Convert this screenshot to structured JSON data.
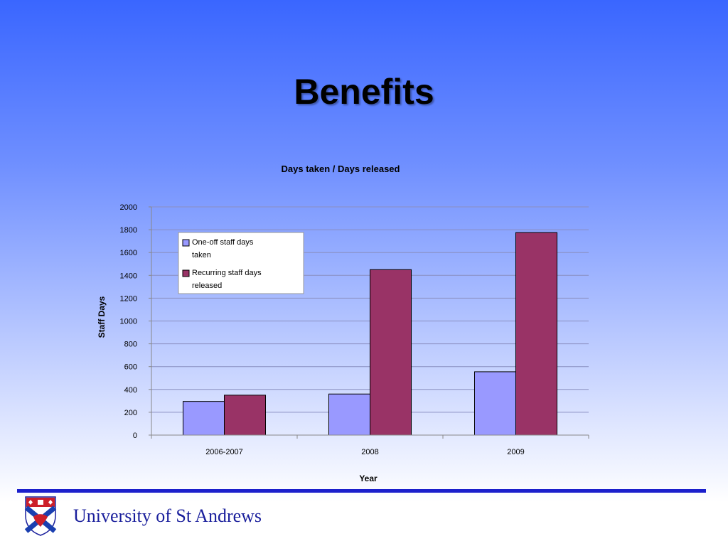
{
  "slide": {
    "title": "Benefits"
  },
  "footer": {
    "university_name": "University of St Andrews"
  },
  "colors": {
    "series1": "#9999ff",
    "series2": "#993366",
    "footer_line": "#1b1fcc",
    "title_text": "#000000"
  },
  "chart_data": {
    "type": "bar",
    "title": "Days taken / Days released",
    "xlabel": "Year",
    "ylabel": "Staff Days",
    "categories": [
      "2006-2007",
      "2008",
      "2009"
    ],
    "series": [
      {
        "name": "One-off staff days taken",
        "values": [
          295,
          360,
          555
        ]
      },
      {
        "name": "Recurring staff days released",
        "values": [
          350,
          1450,
          1775
        ]
      }
    ],
    "ylim": [
      0,
      2000
    ],
    "yticks": [
      0,
      200,
      400,
      600,
      800,
      1000,
      1200,
      1400,
      1600,
      1800,
      2000
    ],
    "grid": true,
    "legend_position": "top-left"
  }
}
